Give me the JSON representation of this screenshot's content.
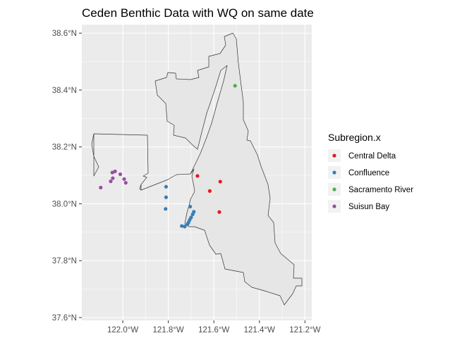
{
  "title": "Ceden Benthic Data with WQ on same date",
  "legend": {
    "title": "Subregion.x",
    "position": "right",
    "items": [
      {
        "label": "Central Delta",
        "color": "#E41A1C"
      },
      {
        "label": "Confluence",
        "color": "#377EB8"
      },
      {
        "label": "Sacramento River",
        "color": "#4DAF4A"
      },
      {
        "label": "Suisun Bay",
        "color": "#984EA3"
      }
    ]
  },
  "chart_data": {
    "type": "scatter",
    "title": "Ceden Benthic Data with WQ on same date",
    "xlabel": "",
    "ylabel": "",
    "xlim": [
      -122.18,
      -121.17
    ],
    "ylim": [
      37.59,
      38.63
    ],
    "grid": true,
    "x_ticks": [
      -122.0,
      -121.8,
      -121.6,
      -121.4,
      -121.2
    ],
    "x_tick_labels": [
      "122.0°W",
      "121.8°W",
      "121.6°W",
      "121.4°W",
      "121.2°W"
    ],
    "y_ticks": [
      37.6,
      37.8,
      38.0,
      38.2,
      38.4,
      38.6
    ],
    "y_tick_labels": [
      "37.6°N",
      "37.8°N",
      "38.0°N",
      "38.2°N",
      "38.4°N",
      "38.6°N"
    ],
    "series": [
      {
        "name": "Central Delta",
        "color": "#E41A1C",
        "points": [
          [
            -121.672,
            38.098
          ],
          [
            -121.572,
            38.078
          ],
          [
            -121.618,
            38.045
          ],
          [
            -121.576,
            37.971
          ]
        ]
      },
      {
        "name": "Confluence",
        "color": "#377EB8",
        "points": [
          [
            -121.81,
            38.06
          ],
          [
            -121.81,
            38.023
          ],
          [
            -121.812,
            37.982
          ],
          [
            -121.704,
            37.99
          ],
          [
            -121.688,
            37.972
          ],
          [
            -121.693,
            37.963
          ],
          [
            -121.7,
            37.952
          ],
          [
            -121.706,
            37.944
          ],
          [
            -121.711,
            37.935
          ],
          [
            -121.716,
            37.928
          ],
          [
            -121.741,
            37.922
          ],
          [
            -121.728,
            37.92
          ]
        ]
      },
      {
        "name": "Sacramento River",
        "color": "#4DAF4A",
        "points": [
          [
            -121.507,
            38.415
          ]
        ]
      },
      {
        "name": "Suisun Bay",
        "color": "#984EA3",
        "points": [
          [
            -122.097,
            38.057
          ],
          [
            -122.053,
            38.079
          ],
          [
            -122.044,
            38.09
          ],
          [
            -122.046,
            38.11
          ],
          [
            -122.034,
            38.114
          ],
          [
            -122.011,
            38.104
          ],
          [
            -121.994,
            38.087
          ],
          [
            -121.987,
            38.074
          ]
        ]
      }
    ]
  }
}
